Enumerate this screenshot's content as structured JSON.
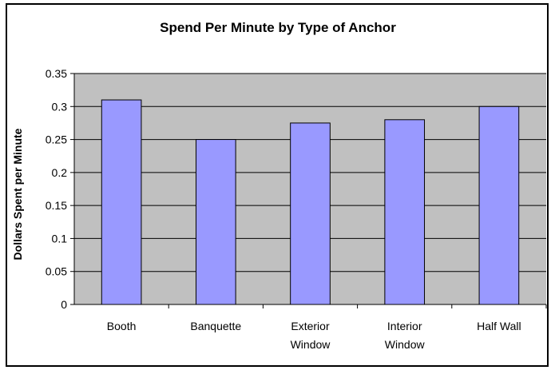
{
  "chart_data": {
    "type": "bar",
    "title": "Spend Per Minute by Type of Anchor",
    "xlabel": "",
    "ylabel": "Dollars Spent per Minute",
    "categories": [
      [
        "Booth"
      ],
      [
        "Banquette"
      ],
      [
        "Exterior",
        "Window"
      ],
      [
        "Interior",
        "Window"
      ],
      [
        "Half Wall"
      ]
    ],
    "values": [
      0.31,
      0.25,
      0.275,
      0.28,
      0.3
    ],
    "ylim": [
      0,
      0.35
    ],
    "yticks": [
      "0",
      "0.05",
      "0.1",
      "0.15",
      "0.2",
      "0.25",
      "0.3",
      "0.35"
    ],
    "grid": true,
    "legend": "none",
    "colors": {
      "bar": "#9999ff",
      "bar_outline": "#000000",
      "plot_bg": "#c0c0c0",
      "grid": "#000000"
    }
  }
}
